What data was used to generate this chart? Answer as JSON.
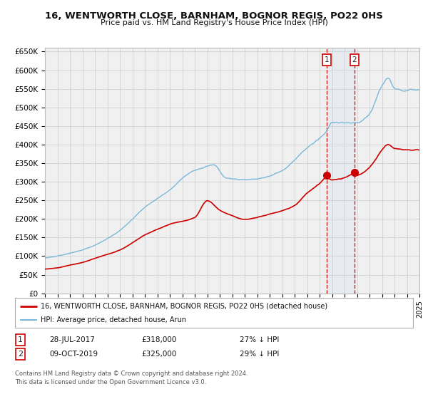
{
  "title": "16, WENTWORTH CLOSE, BARNHAM, BOGNOR REGIS, PO22 0HS",
  "subtitle": "Price paid vs. HM Land Registry's House Price Index (HPI)",
  "legend_line1": "16, WENTWORTH CLOSE, BARNHAM, BOGNOR REGIS, PO22 0HS (detached house)",
  "legend_line2": "HPI: Average price, detached house, Arun",
  "annotation1_date": "28-JUL-2017",
  "annotation1_price": "£318,000",
  "annotation1_hpi": "27% ↓ HPI",
  "annotation1_year": 2017.57,
  "annotation1_value": 318000,
  "annotation2_date": "09-OCT-2019",
  "annotation2_price": "£325,000",
  "annotation2_hpi": "29% ↓ HPI",
  "annotation2_year": 2019.78,
  "annotation2_value": 325000,
  "footer_line1": "Contains HM Land Registry data © Crown copyright and database right 2024.",
  "footer_line2": "This data is licensed under the Open Government Licence v3.0.",
  "hpi_color": "#7ab8d9",
  "price_color": "#cc0000",
  "background_color": "#f0f0f0",
  "grid_color": "#cccccc",
  "ylim": [
    0,
    660000
  ],
  "xlim_start": 1995,
  "xlim_end": 2025,
  "yticks": [
    0,
    50000,
    100000,
    150000,
    200000,
    250000,
    300000,
    350000,
    400000,
    450000,
    500000,
    550000,
    600000,
    650000
  ],
  "ytick_labels": [
    "£0",
    "£50K",
    "£100K",
    "£150K",
    "£200K",
    "£250K",
    "£300K",
    "£350K",
    "£400K",
    "£450K",
    "£500K",
    "£550K",
    "£600K",
    "£650K"
  ]
}
